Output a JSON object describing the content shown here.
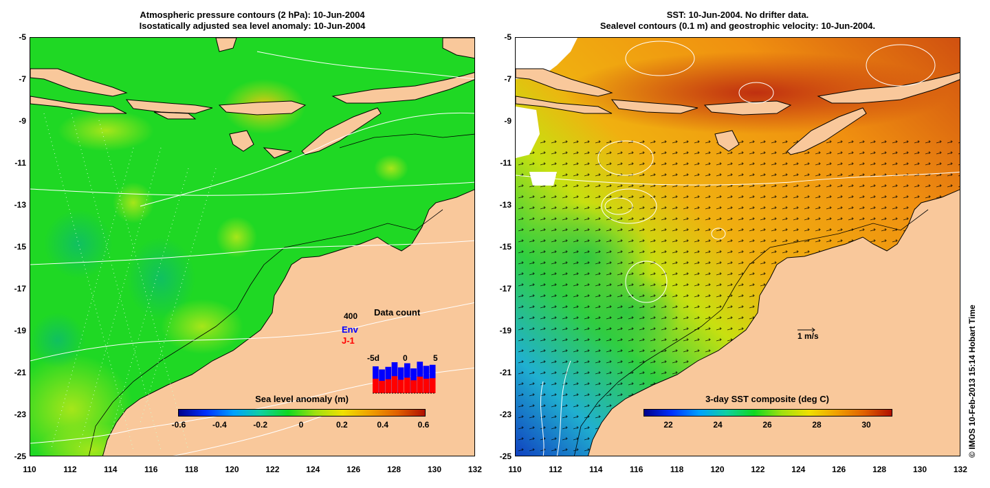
{
  "left_panel": {
    "title_line1": "Atmospheric pressure contours (2 hPa): 10-Jun-2004",
    "title_line2": "Isostatically adjusted sea level anomaly: 10-Jun-2004",
    "colorbar": {
      "title": "Sea level anomaly (m)",
      "ticks": [
        "-0.6",
        "-0.4",
        "-0.2",
        "0",
        "0.2",
        "0.4",
        "0.6"
      ]
    },
    "inset": {
      "title": "Data count",
      "ymax_label": "400",
      "series1": "Env",
      "series2": "J-1",
      "series1_color": "#0000ff",
      "series2_color": "#ff0000",
      "x_labels": [
        "-5d",
        "0",
        "5"
      ],
      "env_counts": [
        260,
        230,
        255,
        300,
        250,
        290,
        240,
        305,
        265,
        275
      ],
      "j1_counts": [
        140,
        120,
        135,
        165,
        130,
        150,
        125,
        160,
        140,
        145
      ],
      "ymax": 400
    }
  },
  "right_panel": {
    "title_line1": "SST: 10-Jun-2004. No drifter data.",
    "title_line2": "Sealevel contours (0.1 m) and geostrophic velocity: 10-Jun-2004.",
    "colorbar": {
      "title": "3-day SST composite (deg C)",
      "ticks": [
        "22",
        "24",
        "26",
        "28",
        "30"
      ]
    },
    "velocity_scale_label": "1 m/s"
  },
  "axes": {
    "y_ticks": [
      "-5",
      "-7",
      "-9",
      "-11",
      "-13",
      "-15",
      "-17",
      "-19",
      "-21",
      "-23",
      "-25"
    ],
    "x_ticks": [
      "110",
      "112",
      "114",
      "116",
      "118",
      "120",
      "122",
      "124",
      "126",
      "128",
      "130",
      "132"
    ]
  },
  "copyright": "© IMOS 10-Feb-2013 15:14 Hobart Time",
  "colors": {
    "land": "#f9c89b",
    "sla_ocean": "#1fdc1f",
    "sst_ocean": "#f0a020"
  }
}
